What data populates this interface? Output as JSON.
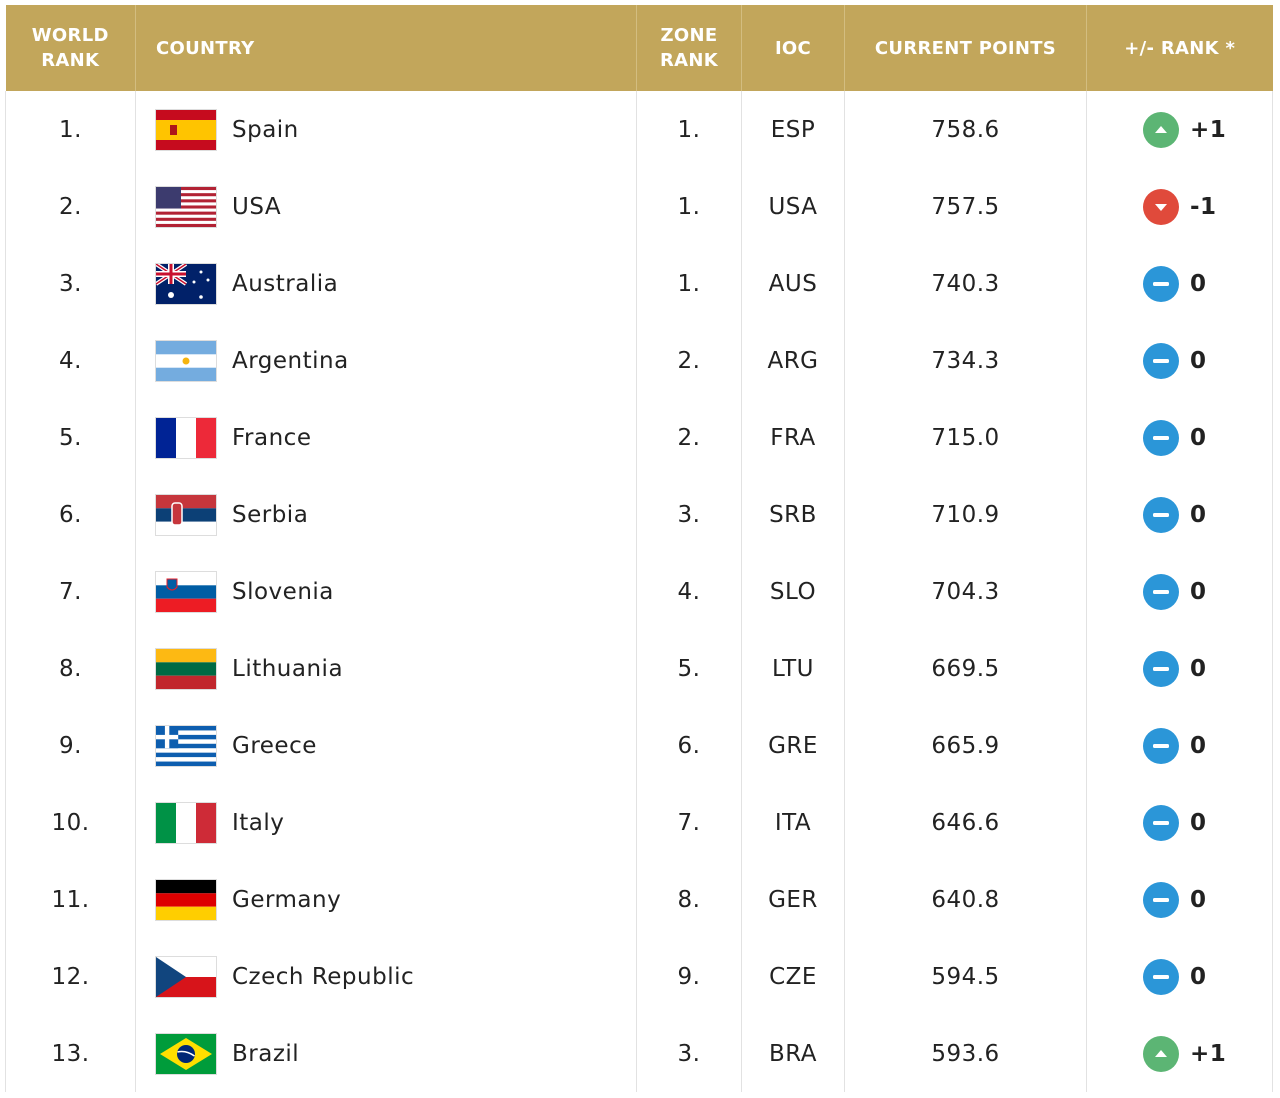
{
  "table": {
    "header": [
      "WORLD RANK",
      "COUNTRY",
      "ZONE RANK",
      "IOC",
      "CURRENT POINTS",
      "+/- RANK *"
    ],
    "rows": [
      {
        "world_rank": "1.",
        "country": "Spain",
        "zone_rank": "1.",
        "ioc": "ESP",
        "points": "758.6",
        "rank_change": {
          "value": 1,
          "label": "+1"
        }
      },
      {
        "world_rank": "2.",
        "country": "USA",
        "zone_rank": "1.",
        "ioc": "USA",
        "points": "757.5",
        "rank_change": {
          "value": -1,
          "label": "-1"
        }
      },
      {
        "world_rank": "3.",
        "country": "Australia",
        "zone_rank": "1.",
        "ioc": "AUS",
        "points": "740.3",
        "rank_change": {
          "value": 0,
          "label": "0"
        }
      },
      {
        "world_rank": "4.",
        "country": "Argentina",
        "zone_rank": "2.",
        "ioc": "ARG",
        "points": "734.3",
        "rank_change": {
          "value": 0,
          "label": "0"
        }
      },
      {
        "world_rank": "5.",
        "country": "France",
        "zone_rank": "2.",
        "ioc": "FRA",
        "points": "715.0",
        "rank_change": {
          "value": 0,
          "label": "0"
        }
      },
      {
        "world_rank": "6.",
        "country": "Serbia",
        "zone_rank": "3.",
        "ioc": "SRB",
        "points": "710.9",
        "rank_change": {
          "value": 0,
          "label": "0"
        }
      },
      {
        "world_rank": "7.",
        "country": "Slovenia",
        "zone_rank": "4.",
        "ioc": "SLO",
        "points": "704.3",
        "rank_change": {
          "value": 0,
          "label": "0"
        }
      },
      {
        "world_rank": "8.",
        "country": "Lithuania",
        "zone_rank": "5.",
        "ioc": "LTU",
        "points": "669.5",
        "rank_change": {
          "value": 0,
          "label": "0"
        }
      },
      {
        "world_rank": "9.",
        "country": "Greece",
        "zone_rank": "6.",
        "ioc": "GRE",
        "points": "665.9",
        "rank_change": {
          "value": 0,
          "label": "0"
        }
      },
      {
        "world_rank": "10.",
        "country": "Italy",
        "zone_rank": "7.",
        "ioc": "ITA",
        "points": "646.6",
        "rank_change": {
          "value": 0,
          "label": "0"
        }
      },
      {
        "world_rank": "11.",
        "country": "Germany",
        "zone_rank": "8.",
        "ioc": "GER",
        "points": "640.8",
        "rank_change": {
          "value": 0,
          "label": "0"
        }
      },
      {
        "world_rank": "12.",
        "country": "Czech Republic",
        "zone_rank": "9.",
        "ioc": "CZE",
        "points": "594.5",
        "rank_change": {
          "value": 0,
          "label": "0"
        }
      },
      {
        "world_rank": "13.",
        "country": "Brazil",
        "zone_rank": "3.",
        "ioc": "BRA",
        "points": "593.6",
        "rank_change": {
          "value": 1,
          "label": "+1"
        }
      }
    ]
  }
}
